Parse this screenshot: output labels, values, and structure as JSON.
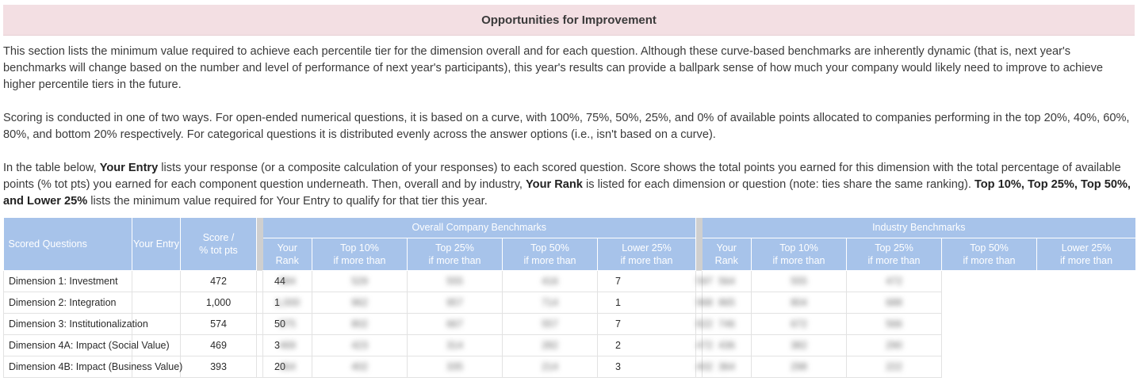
{
  "section": {
    "title": "Opportunities for Improvement",
    "para1": "This section lists the minimum value required to achieve each percentile tier for the dimension overall and for each question. Although these curve-based benchmarks are inherently dynamic (that is, next year's benchmarks will change based on the number and level of performance of next year's participants), this year's results can provide a ballpark sense of how much your company would likely need to improve to achieve higher percentile tiers in the future.",
    "para2": "Scoring is conducted in one of two ways. For open-ended numerical questions, it is based on a curve, with 100%, 75%, 50%, 25%, and 0% of available points allocated to companies performing in the top 20%, 40%, 60%, 80%, and bottom 20% respectively. For categorical questions it is distributed evenly across the answer options (i.e., isn't based on a curve).",
    "para3": {
      "s1": "In the table below, ",
      "b1": "Your Entry",
      "s2": " lists your response (or a composite calculation of your responses) to each scored question. Score shows the total points you earned for this dimension with the total percentage of available points (% tot pts) you earned for each component question underneath. Then, overall and by industry, ",
      "b2": "Your Rank",
      "s3": " is listed for each dimension or question (note: ties share the same ranking). ",
      "b3": "Top 10%, Top 25%, Top 50%, and Lower 25%",
      "s4": " lists the minimum value required for Your Entry to qualify for that tier this year."
    }
  },
  "table": {
    "col_scored": "Scored Questions",
    "col_entry": "Your Entry",
    "col_score_l1": "Score /",
    "col_score_l2": "% tot pts",
    "group_overall": "Overall Company Benchmarks",
    "group_industry": "Industry Benchmarks",
    "sub_rank_l1": "Your",
    "sub_rank_l2": "Rank",
    "sub_top10": "Top 10%",
    "sub_top25": "Top 25%",
    "sub_top50": "Top 50%",
    "sub_lower25": "Lower 25%",
    "sub_ifmore": "if more than",
    "rows": [
      {
        "name": "Dimension 1: Investment",
        "entry": "",
        "score": "472",
        "o_rank": "44",
        "o": [
          "584",
          "529",
          "555",
          "416"
        ],
        "i_rank": "7",
        "i": [
          "597",
          "564",
          "555",
          "472"
        ]
      },
      {
        "name": "Dimension 2: Integration",
        "entry": "",
        "score": "1,000",
        "o_rank": "1",
        "o": [
          "1,000",
          "962",
          "957",
          "714"
        ],
        "i_rank": "1",
        "i": [
          "968",
          "865",
          "804",
          "688"
        ]
      },
      {
        "name": "Dimension 3: Institutionalization",
        "entry": "",
        "score": "574",
        "o_rank": "50",
        "o": [
          "875",
          "802",
          "667",
          "557"
        ],
        "i_rank": "7",
        "i": [
          "822",
          "746",
          "672",
          "566"
        ]
      },
      {
        "name": "Dimension 4A: Impact (Social Value)",
        "entry": "",
        "score": "469",
        "o_rank": "3",
        "o": [
          "469",
          "423",
          "314",
          "282"
        ],
        "i_rank": "2",
        "i": [
          "472",
          "436",
          "382",
          "290"
        ]
      },
      {
        "name": "Dimension 4B: Impact (Business Value)",
        "entry": "",
        "score": "393",
        "o_rank": "20",
        "o": [
          "464",
          "402",
          "335",
          "214"
        ],
        "i_rank": "3",
        "i": [
          "402",
          "364",
          "298",
          "222"
        ]
      }
    ]
  },
  "colors": {
    "header_bg": "#f3dfe3",
    "table_header_bg": "#a7c3ea",
    "separator": "#cfcfcf"
  }
}
